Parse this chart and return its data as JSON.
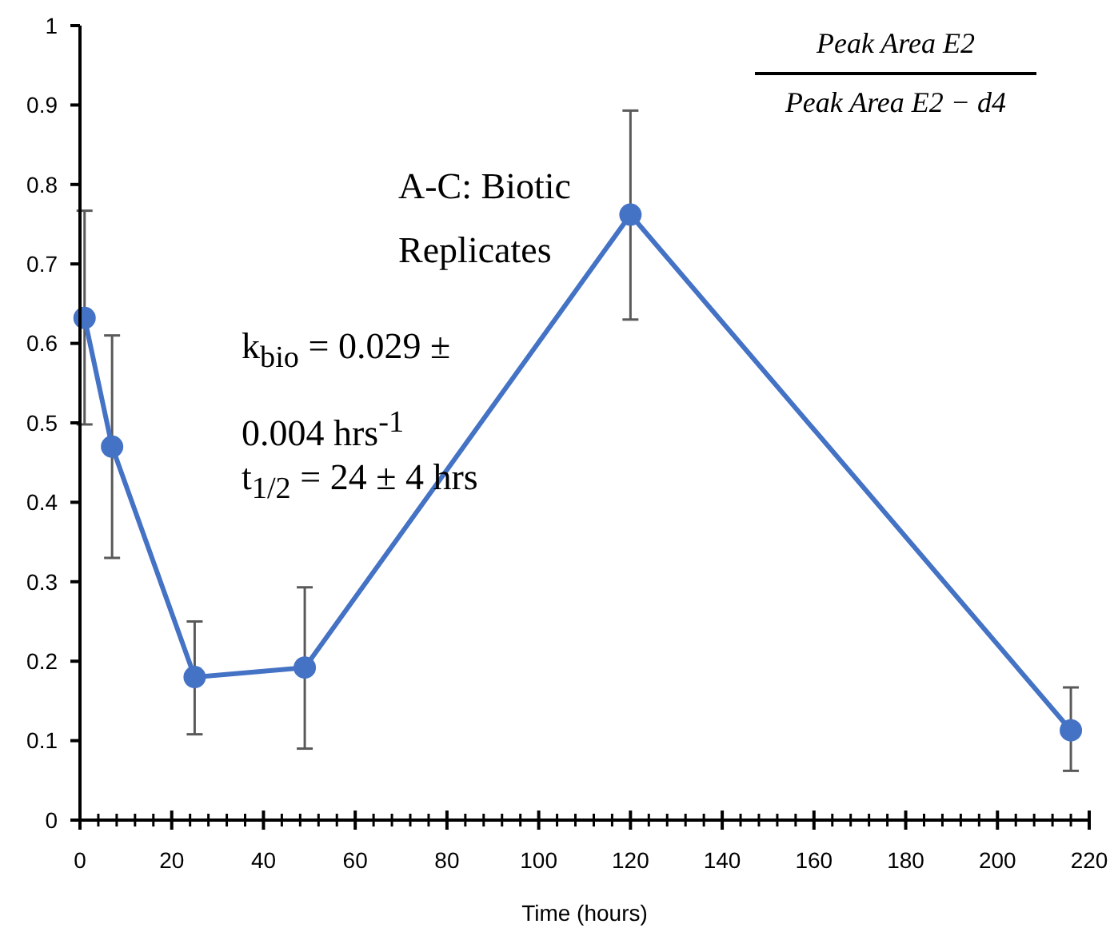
{
  "chart_data": {
    "type": "line",
    "xlabel": "Time (hours)",
    "x": [
      1,
      7,
      25,
      49,
      120,
      216
    ],
    "series": [
      {
        "color": "#4472c4",
        "values": [
          0.632,
          0.47,
          0.18,
          0.192,
          0.762,
          0.113
        ],
        "errors": [
          [
            0.498,
            0.767
          ],
          [
            0.33,
            0.61
          ],
          [
            0.108,
            0.25
          ],
          [
            0.09,
            0.293
          ],
          [
            0.63,
            0.893
          ],
          [
            0.062,
            0.167
          ]
        ]
      }
    ],
    "marker": "circle",
    "line_style": "solid",
    "grid": false,
    "xlim": [
      0,
      220
    ],
    "xticks": [
      0,
      {
        "value": 4,
        "label": null
      },
      {
        "value": 8,
        "label": null
      },
      {
        "value": 12,
        "label": null
      },
      {
        "value": 16,
        "label": null
      },
      20,
      {
        "value": 24,
        "label": null
      },
      {
        "value": 28,
        "label": null
      },
      {
        "value": 32,
        "label": null
      },
      {
        "value": 36,
        "label": null
      },
      40,
      {
        "value": 44,
        "label": null
      },
      {
        "value": 48,
        "label": null
      },
      {
        "value": 52,
        "label": null
      },
      {
        "value": 56,
        "label": null
      },
      60,
      {
        "value": 64,
        "label": null
      },
      {
        "value": 68,
        "label": null
      },
      {
        "value": 72,
        "label": null
      },
      {
        "value": 76,
        "label": null
      },
      80,
      {
        "value": 84,
        "label": null
      },
      {
        "value": 88,
        "label": null
      },
      {
        "value": 92,
        "label": null
      },
      {
        "value": 96,
        "label": null
      },
      100,
      {
        "value": 104,
        "label": null
      },
      {
        "value": 108,
        "label": null
      },
      {
        "value": 112,
        "label": null
      },
      {
        "value": 116,
        "label": null
      },
      120,
      {
        "value": 124,
        "label": null
      },
      {
        "value": 128,
        "label": null
      },
      {
        "value": 132,
        "label": null
      },
      {
        "value": 136,
        "label": null
      },
      140,
      {
        "value": 144,
        "label": null
      },
      {
        "value": 148,
        "label": null
      },
      {
        "value": 152,
        "label": null
      },
      {
        "value": 156,
        "label": null
      },
      160,
      {
        "value": 164,
        "label": null
      },
      {
        "value": 168,
        "label": null
      },
      {
        "value": 172,
        "label": null
      },
      {
        "value": 176,
        "label": null
      },
      180,
      {
        "value": 184,
        "label": null
      },
      {
        "value": 188,
        "label": null
      },
      {
        "value": 192,
        "label": null
      },
      {
        "value": 196,
        "label": null
      },
      200,
      {
        "value": 204,
        "label": null
      },
      {
        "value": 208,
        "label": null
      },
      {
        "value": 212,
        "label": null
      },
      {
        "value": 216,
        "label": null
      },
      220
    ],
    "ylim": [
      0,
      1
    ],
    "yticks": [
      0,
      0.1,
      0.2,
      0.3,
      0.4,
      0.5,
      0.6,
      0.7,
      0.8,
      0.9,
      1
    ],
    "annotations": [
      "A-C: Biotic Replicates",
      "k$_{bio}$ = 0.029 ± 0.004 hrs$^{-1}$",
      "t$_{1/2}$ = 24 ± 4 hrs",
      "Peak Area E2",
      "Peak Area E2 − d4"
    ]
  }
}
